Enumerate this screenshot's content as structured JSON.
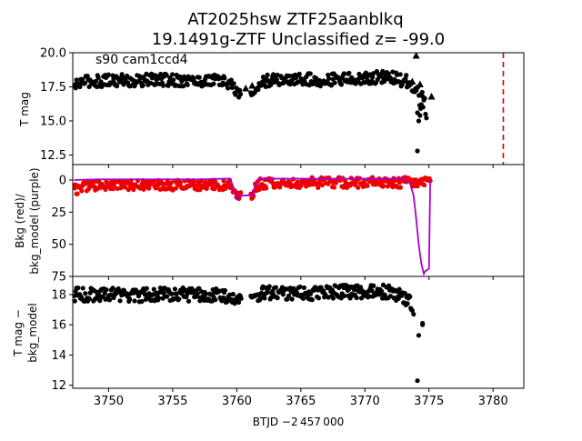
{
  "figure": {
    "title_line1": "AT2025hsw  ZTF25aanblkq",
    "title_line2": "19.1491g-ZTF Unclassified z= -99.0",
    "annotation": "s90 cam1ccd4",
    "xlabel": "BTJD −2 457 000"
  },
  "chart_data": [
    {
      "type": "scatter",
      "panel": "top",
      "ylabel": "T mag",
      "xlim": [
        3747.2,
        3782.4
      ],
      "ylim": [
        20.0,
        11.8
      ],
      "y_inverted": true,
      "x_ticks": [
        3750,
        3755,
        3760,
        3765,
        3770,
        3775,
        3780
      ],
      "y_ticks": [
        12.5,
        15.0,
        17.5,
        20.0
      ],
      "y_tick_labels": [
        "12.5",
        "15.0",
        "17.5",
        "20.0"
      ],
      "series": [
        {
          "color": "#000000",
          "marker": "dot",
          "x": [
            3747.3,
            3748.0,
            3749.0,
            3750.0,
            3751.0,
            3752.0,
            3753.0,
            3754.0,
            3755.0,
            3756.0,
            3757.0,
            3758.0,
            3759.0,
            3759.5,
            3760.0,
            3760.2,
            3761.2,
            3761.6,
            3762.0,
            3763.0,
            3764.0,
            3765.0,
            3766.0,
            3767.0,
            3768.0,
            3769.0,
            3770.0,
            3771.0,
            3772.0,
            3772.8,
            3773.3,
            3773.7,
            3774.0,
            3774.2,
            3774.4,
            3774.6,
            3774.8
          ],
          "y": [
            17.5,
            17.9,
            17.9,
            18.0,
            18.0,
            17.9,
            18.0,
            18.0,
            18.0,
            18.0,
            17.9,
            18.0,
            17.9,
            17.7,
            17.2,
            17.0,
            16.9,
            17.4,
            17.9,
            18.0,
            18.0,
            18.1,
            18.0,
            18.0,
            18.1,
            18.1,
            18.1,
            18.2,
            18.2,
            18.0,
            17.9,
            17.6,
            17.2,
            16.8,
            16.4,
            16.1,
            15.8
          ],
          "spread": [
            0.45,
            0.45,
            0.45,
            0.45,
            0.45,
            0.45,
            0.45,
            0.45,
            0.45,
            0.45,
            0.45,
            0.45,
            0.45,
            0.45,
            0.4,
            0.4,
            0.4,
            0.4,
            0.45,
            0.45,
            0.45,
            0.45,
            0.45,
            0.45,
            0.45,
            0.45,
            0.45,
            0.45,
            0.45,
            0.45,
            0.45,
            0.5,
            0.5,
            0.7,
            1.0,
            1.0,
            0.9
          ]
        }
      ],
      "outliers": [
        {
          "x": 3774.1,
          "y": 12.8
        },
        {
          "x": 3774.2,
          "y": 15.0
        },
        {
          "x": 3774.3,
          "y": 15.4
        },
        {
          "x": 3774.1,
          "y": 15.6
        },
        {
          "x": 3774.4,
          "y": 16.2
        },
        {
          "x": 3774.5,
          "y": 16.8
        }
      ],
      "upper_limits": [
        {
          "x": 3747.4,
          "y": 17.7
        },
        {
          "x": 3760.7,
          "y": 17.4
        },
        {
          "x": 3761.2,
          "y": 17.6
        },
        {
          "x": 3773.2,
          "y": 18.0
        },
        {
          "x": 3773.7,
          "y": 17.9
        },
        {
          "x": 3774.0,
          "y": 19.8
        },
        {
          "x": 3774.3,
          "y": 17.7
        },
        {
          "x": 3775.2,
          "y": 16.8
        }
      ],
      "vline": {
        "x": 3780.8,
        "color": "#dd0000",
        "style": "dashed"
      }
    },
    {
      "type": "line",
      "panel": "middle",
      "ylabel_line1": "Bkg (red)/",
      "ylabel_line2": "bkg_model (purple)",
      "xlim": [
        3747.2,
        3782.4
      ],
      "ylim": [
        -12,
        75
      ],
      "x_ticks": [
        3750,
        3755,
        3760,
        3765,
        3770,
        3775,
        3780
      ],
      "y_ticks": [
        0,
        25,
        50,
        75
      ],
      "y_tick_labels": [
        "0",
        "25",
        "50",
        "75"
      ],
      "series": [
        {
          "name": "bkg",
          "color": "#ee0000",
          "marker": "dot",
          "x": [
            3747.3,
            3748.0,
            3749.0,
            3750.0,
            3751.0,
            3752.0,
            3753.0,
            3754.0,
            3755.0,
            3756.0,
            3757.0,
            3758.0,
            3759.0,
            3759.4,
            3759.7,
            3760.0,
            3760.3,
            3761.2,
            3761.5,
            3761.8,
            3762.2,
            3763.0,
            3764.0,
            3765.0,
            3766.0,
            3767.0,
            3768.0,
            3769.0,
            3770.0,
            3771.0,
            3772.0,
            3773.0,
            3773.6,
            3774.0,
            3774.4,
            3774.8,
            3775.1
          ],
          "y": [
            8.0,
            5.0,
            4.0,
            4.0,
            4.0,
            4.0,
            4.0,
            4.0,
            4.0,
            4.0,
            4.0,
            4.0,
            4.0,
            3.0,
            5.0,
            12.0,
            12.0,
            12.0,
            6.0,
            3.0,
            3.0,
            2.0,
            2.0,
            2.0,
            2.0,
            2.0,
            2.0,
            2.0,
            2.0,
            2.0,
            2.0,
            2.0,
            1.0,
            2.0,
            2.0,
            1.0,
            0.0
          ],
          "spread": [
            4,
            4,
            4,
            4,
            4,
            4,
            4,
            4,
            4,
            4,
            4,
            4,
            4,
            4,
            5,
            3,
            3,
            3,
            5,
            4,
            4,
            4,
            4,
            4,
            4,
            4,
            4,
            4,
            4,
            4,
            4,
            4,
            4,
            3,
            3,
            3,
            2
          ]
        },
        {
          "name": "bkg_model",
          "color": "#aa00cc",
          "marker": "line",
          "x": [
            3747.3,
            3749.0,
            3752.0,
            3755.0,
            3757.0,
            3759.0,
            3759.5,
            3759.8,
            3760.0,
            3760.4,
            3761.3,
            3761.5,
            3761.7,
            3762.0,
            3765.0,
            3768.0,
            3771.0,
            3773.0,
            3773.5,
            3773.8,
            3774.0,
            3774.2,
            3774.4,
            3774.6,
            3774.7,
            3775.0,
            3775.1
          ],
          "y": [
            0.0,
            -0.5,
            -0.5,
            -0.5,
            -0.5,
            -1.0,
            -1.0,
            8.0,
            15.0,
            12.0,
            12.0,
            2.0,
            -1.0,
            -1.0,
            -1.0,
            -1.0,
            -1.0,
            -1.0,
            2.0,
            12.0,
            30.0,
            50.0,
            65.0,
            73.0,
            71.0,
            69.0,
            0.0
          ]
        }
      ]
    },
    {
      "type": "scatter",
      "panel": "bottom",
      "ylabel_line1": "T mag −",
      "ylabel_line2": "bkg_model",
      "xlim": [
        3747.2,
        3782.4
      ],
      "ylim": [
        19.2,
        11.8
      ],
      "y_inverted": true,
      "x_ticks": [
        3750,
        3755,
        3760,
        3765,
        3770,
        3775,
        3780
      ],
      "x_tick_labels": [
        "3750",
        "3755",
        "3760",
        "3765",
        "3770",
        "3775",
        "3780"
      ],
      "y_ticks": [
        12,
        14,
        16,
        18
      ],
      "y_tick_labels": [
        "12",
        "14",
        "16",
        "18"
      ],
      "series": [
        {
          "color": "#000000",
          "marker": "dot",
          "x": [
            3747.3,
            3748.0,
            3749.0,
            3750.0,
            3751.0,
            3752.0,
            3753.0,
            3754.0,
            3755.0,
            3756.0,
            3757.0,
            3758.0,
            3759.0,
            3759.6,
            3761.2,
            3761.6,
            3762.0,
            3763.0,
            3764.0,
            3765.0,
            3766.0,
            3767.0,
            3768.0,
            3769.0,
            3770.0,
            3771.0,
            3772.0,
            3772.6,
            3773.0,
            3773.4,
            3773.7
          ],
          "y": [
            18.0,
            18.0,
            18.0,
            18.0,
            18.0,
            17.9,
            18.0,
            18.0,
            18.0,
            18.0,
            18.0,
            18.0,
            17.9,
            17.8,
            17.7,
            17.9,
            18.1,
            18.1,
            18.1,
            18.1,
            18.1,
            18.1,
            18.2,
            18.2,
            18.2,
            18.2,
            18.2,
            18.0,
            17.8,
            17.6,
            17.3
          ],
          "spread": [
            0.45,
            0.45,
            0.45,
            0.45,
            0.45,
            0.45,
            0.45,
            0.45,
            0.45,
            0.45,
            0.45,
            0.45,
            0.45,
            0.4,
            0.4,
            0.4,
            0.45,
            0.45,
            0.45,
            0.45,
            0.45,
            0.45,
            0.45,
            0.45,
            0.45,
            0.45,
            0.45,
            0.45,
            0.45,
            0.45,
            0.45
          ]
        }
      ],
      "outliers": [
        {
          "x": 3774.1,
          "y": 12.3
        },
        {
          "x": 3774.2,
          "y": 15.3
        },
        {
          "x": 3774.5,
          "y": 16.1
        },
        {
          "x": 3774.5,
          "y": 16.0
        },
        {
          "x": 3773.8,
          "y": 16.7
        }
      ]
    }
  ]
}
